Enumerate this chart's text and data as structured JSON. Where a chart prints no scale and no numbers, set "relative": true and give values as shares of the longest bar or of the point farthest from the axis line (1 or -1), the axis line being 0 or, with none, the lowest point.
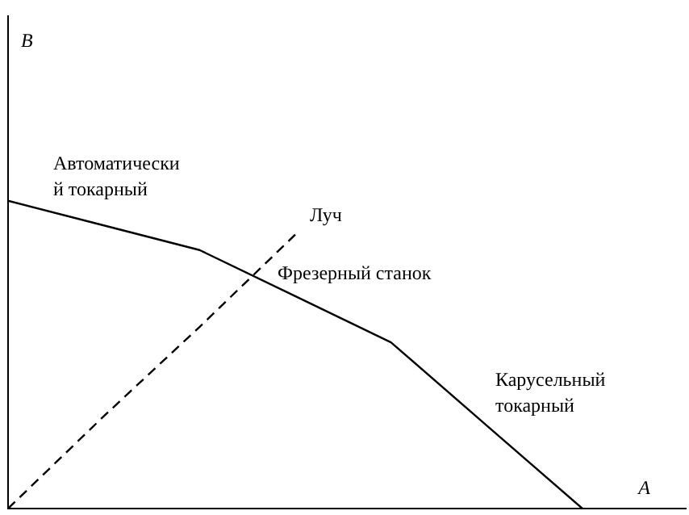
{
  "chart_data": {
    "type": "line",
    "relative": true,
    "xlabel": "A",
    "categories": [
      null,
      null,
      null,
      null,
      null,
      null,
      null
    ],
    "grid": false,
    "legend": false,
    "marker": "none",
    "series": [
      {
        "color": "#000000",
        "values": [
          1,
          0.92,
          0.84,
          0.69,
          0.54,
          0.27,
          0
        ]
      },
      {
        "type": "line",
        "line_style": "dashed",
        "color": "#000000",
        "values": [
          0,
          0.3,
          0.59,
          0.89,
          null,
          null,
          null
        ]
      }
    ],
    "annotations": [
      "B",
      "Автоматически\nй токарный",
      "Луч",
      "Фрезерный станок",
      "Карусельный\nтокарный"
    ]
  }
}
